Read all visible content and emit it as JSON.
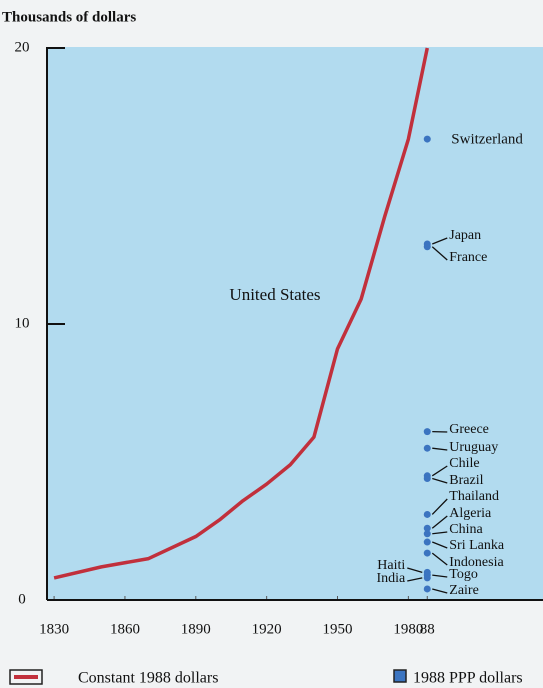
{
  "chart_data": {
    "type": "line",
    "y_label": "Thousands of dollars",
    "xlim": [
      1827,
      2037
    ],
    "ylim": [
      0,
      20
    ],
    "xticks": [
      1830,
      1860,
      1890,
      1920,
      1950,
      1980,
      {
        "value": 1988,
        "label": "88"
      }
    ],
    "yticks": [
      0,
      10,
      20
    ],
    "series": [
      {
        "name": "United States",
        "color": "#c1303c",
        "x": [
          1830,
          1850,
          1870,
          1890,
          1900,
          1910,
          1920,
          1930,
          1940,
          1950,
          1960,
          1970,
          1980,
          1988
        ],
        "values": [
          0.8,
          1.2,
          1.5,
          2.3,
          2.9,
          3.6,
          4.2,
          4.9,
          5.9,
          9.1,
          10.9,
          13.9,
          16.7,
          20
        ]
      }
    ],
    "points": {
      "color": "#3b74c0",
      "names": [
        "Switzerland",
        "Japan",
        "France",
        "Greece",
        "Uruguay",
        "Chile",
        "Brazil",
        "Thailand",
        "Algeria",
        "China",
        "Sri Lanka",
        "Indonesia",
        "Haiti",
        "Togo",
        "India",
        "Zaire"
      ],
      "x": [
        1988,
        1988,
        1988,
        1988,
        1988,
        1988,
        1988,
        1988,
        1988,
        1988,
        1988,
        1988,
        1988,
        1988,
        1988,
        1988
      ],
      "values": [
        16.7,
        12.9,
        12.8,
        6.1,
        5.5,
        4.5,
        4.4,
        3.1,
        2.6,
        2.4,
        2.1,
        1.7,
        1.0,
        0.9,
        0.8,
        0.4
      ]
    },
    "legend": [
      "Constant 1988 dollars",
      "1988 PPP dollars"
    ]
  }
}
